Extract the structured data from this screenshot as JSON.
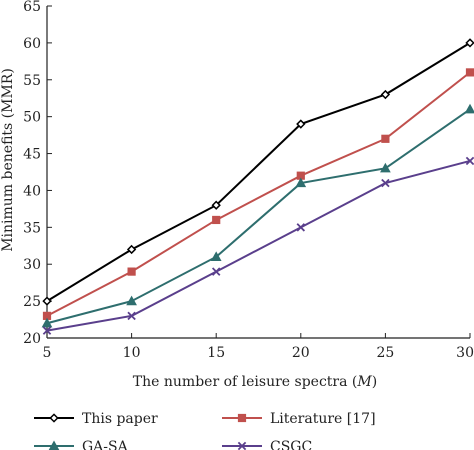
{
  "chart_data": {
    "type": "line",
    "x": [
      5,
      10,
      15,
      20,
      25,
      30
    ],
    "xlabel": "The number of leisure spectra",
    "xlabel_var": "M",
    "ylabel": "Minimum benefits (MMR)",
    "xlim": [
      5,
      30
    ],
    "ylim": [
      20,
      65
    ],
    "xticks": [
      5,
      10,
      15,
      20,
      25,
      30
    ],
    "yticks": [
      20,
      25,
      30,
      35,
      40,
      45,
      50,
      55,
      60,
      65
    ],
    "grid": false,
    "legend_position": "bottom",
    "series": [
      {
        "name": "This paper",
        "values": [
          25,
          32,
          38,
          49,
          53,
          60
        ],
        "color": "#000000",
        "marker": "diamond"
      },
      {
        "name": "Literature [17]",
        "values": [
          23,
          29,
          36,
          42,
          47,
          56
        ],
        "color": "#c0504d",
        "marker": "square"
      },
      {
        "name": "GA-SA",
        "values": [
          22,
          25,
          31,
          41,
          43,
          51
        ],
        "color": "#2e6e6e",
        "marker": "triangle"
      },
      {
        "name": "CSGC",
        "values": [
          21,
          23,
          29,
          35,
          41,
          44
        ],
        "color": "#5a3f8c",
        "marker": "x"
      }
    ]
  }
}
